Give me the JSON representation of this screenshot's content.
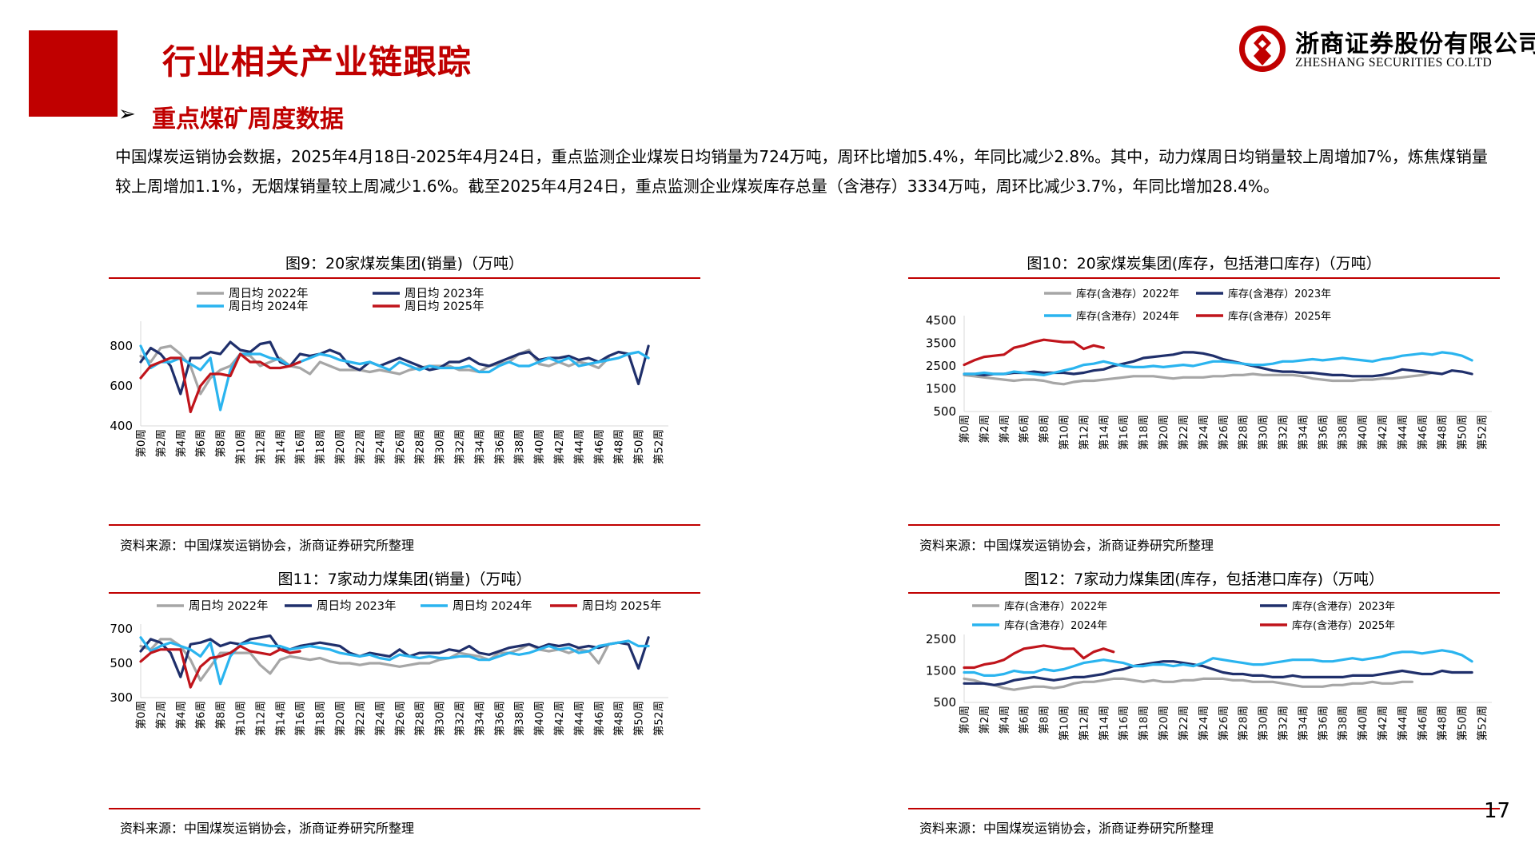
{
  "header": {
    "title": "行业相关产业链跟踪",
    "logo_cn": "浙商证券股份有限公司",
    "logo_en": "ZHESHANG SECURITIES CO.LTD",
    "accent_color": "#c00000"
  },
  "section": {
    "bullet": "➢",
    "title": "重点煤矿周度数据"
  },
  "paragraph": "中国煤炭运销协会数据，2025年4月18日-2025年4月24日，重点监测企业煤炭日均销量为724万吨，周环比增加5.4%，年同比减少2.8%。其中，动力煤周日均销量较上周增加7%，炼焦煤销量较上周增加1.1%，无烟煤销量较上周减少1.6%。截至2025年4月24日，重点监测企业煤炭库存总量（含港存）3334万吨，周环比减少3.7%，年同比增加28.4%。",
  "page_number": "17",
  "figures": [
    {
      "title": "图9：20家煤炭集团(销量)（万吨）",
      "source": "资料来源：中国煤炭运销协会，浙商证券研究所整理"
    },
    {
      "title": "图10：20家煤炭集团(库存，包括港口库存)（万吨）",
      "source": "资料来源：中国煤炭运销协会，浙商证券研究所整理"
    },
    {
      "title": "图11：7家动力煤集团(销量)（万吨）",
      "source": "资料来源：中国煤炭运销协会，浙商证券研究所整理"
    },
    {
      "title": "图12：7家动力煤集团(库存，包括港口库存)（万吨）",
      "source": "资料来源：中国煤炭运销协会，浙商证券研究所整理"
    }
  ],
  "series_colors": {
    "2022": "#a6a6a6",
    "2023": "#1f2f6b",
    "2024": "#2ab4ef",
    "2025": "#c0141b"
  },
  "chart_data": [
    {
      "type": "line",
      "title": "图9：20家煤炭集团(销量)（万吨）",
      "x_labels": [
        "第0周",
        "第2周",
        "第4周",
        "第6周",
        "第8周",
        "第10周",
        "第12周",
        "第14周",
        "第16周",
        "第18周",
        "第20周",
        "第22周",
        "第24周",
        "第26周",
        "第28周",
        "第30周",
        "第32周",
        "第34周",
        "第36周",
        "第38周",
        "第40周",
        "第42周",
        "第44周",
        "第46周",
        "第48周",
        "第50周",
        "第52周"
      ],
      "x_max": 53,
      "ylim": [
        400,
        900
      ],
      "yticks": [
        400,
        600,
        800
      ],
      "legend": [
        "周日均  2022年",
        "周日均  2023年",
        "周日均  2024年",
        "周日均  2025年"
      ],
      "series": [
        {
          "name": "周日均  2022年",
          "color_key": "2022",
          "values": [
            750,
            720,
            790,
            800,
            760,
            700,
            560,
            640,
            680,
            700,
            760,
            750,
            700,
            720,
            740,
            700,
            690,
            660,
            720,
            700,
            680,
            680,
            680,
            670,
            680,
            670,
            660,
            680,
            690,
            700,
            700,
            700,
            680,
            680,
            670,
            700,
            710,
            720,
            760,
            780,
            710,
            700,
            720,
            700,
            720,
            710,
            690,
            740
          ]
        },
        {
          "name": "周日均  2023年",
          "color_key": "2023",
          "values": [
            720,
            790,
            760,
            700,
            560,
            740,
            740,
            770,
            760,
            820,
            780,
            770,
            810,
            820,
            720,
            700,
            760,
            750,
            760,
            780,
            760,
            700,
            680,
            720,
            700,
            720,
            740,
            720,
            700,
            680,
            690,
            720,
            720,
            740,
            710,
            700,
            720,
            740,
            760,
            770,
            730,
            740,
            740,
            750,
            730,
            740,
            720,
            750,
            770,
            760,
            610,
            800
          ]
        },
        {
          "name": "周日均  2024年",
          "color_key": "2024",
          "values": [
            800,
            690,
            720,
            720,
            740,
            710,
            680,
            740,
            480,
            680,
            760,
            760,
            760,
            740,
            730,
            700,
            720,
            740,
            760,
            750,
            730,
            720,
            710,
            720,
            700,
            680,
            720,
            700,
            680,
            700,
            690,
            690,
            690,
            700,
            670,
            670,
            700,
            720,
            700,
            700,
            720,
            740,
            720,
            740,
            700,
            710,
            720,
            730,
            740,
            760,
            770,
            740
          ]
        },
        {
          "name": "周日均  2025年",
          "color_key": "2025",
          "values": [
            640,
            700,
            720,
            740,
            740,
            470,
            600,
            660,
            660,
            650,
            760,
            720,
            720,
            690,
            690,
            700,
            720
          ]
        }
      ]
    },
    {
      "type": "line",
      "title": "图10：20家煤炭集团(库存，包括港口库存)（万吨）",
      "x_labels": [
        "第0周",
        "第2周",
        "第4周",
        "第6周",
        "第8周",
        "第10周",
        "第12周",
        "第14周",
        "第16周",
        "第18周",
        "第20周",
        "第22周",
        "第24周",
        "第26周",
        "第28周",
        "第30周",
        "第32周",
        "第34周",
        "第36周",
        "第38周",
        "第40周",
        "第42周",
        "第44周",
        "第46周",
        "第48周",
        "第50周",
        "第52周"
      ],
      "x_max": 53,
      "ylim": [
        500,
        4500
      ],
      "yticks": [
        500,
        1500,
        2500,
        3500,
        4500
      ],
      "legend": [
        "库存(含港存）2022年",
        "库存(含港存）2023年",
        "库存(含港存）2024年",
        "库存(含港存）2025年"
      ],
      "series": [
        {
          "name": "库存(含港存）2022年",
          "color_key": "2022",
          "values": [
            2100,
            2050,
            2000,
            1950,
            1900,
            1850,
            1900,
            1900,
            1850,
            1750,
            1700,
            1800,
            1850,
            1850,
            1900,
            1950,
            2000,
            2050,
            2050,
            2050,
            2000,
            1950,
            2000,
            2000,
            2000,
            2050,
            2050,
            2100,
            2100,
            2150,
            2100,
            2100,
            2100,
            2100,
            2050,
            1950,
            1900,
            1850,
            1850,
            1850,
            1900,
            1900,
            1950,
            1950,
            2000,
            2050,
            2100,
            2200
          ]
        },
        {
          "name": "库存(含港存）2023年",
          "color_key": "2023",
          "values": [
            2150,
            2150,
            2100,
            2150,
            2150,
            2200,
            2200,
            2250,
            2200,
            2200,
            2200,
            2150,
            2200,
            2300,
            2350,
            2500,
            2600,
            2700,
            2850,
            2900,
            2950,
            3000,
            3100,
            3100,
            3050,
            2950,
            2800,
            2700,
            2600,
            2500,
            2400,
            2300,
            2250,
            2250,
            2200,
            2200,
            2150,
            2100,
            2100,
            2050,
            2050,
            2050,
            2100,
            2200,
            2350,
            2300,
            2250,
            2200,
            2150,
            2300,
            2250,
            2150
          ]
        },
        {
          "name": "库存(含港存）2024年",
          "color_key": "2024",
          "values": [
            2150,
            2150,
            2200,
            2150,
            2150,
            2250,
            2200,
            2150,
            2100,
            2200,
            2300,
            2400,
            2550,
            2600,
            2700,
            2600,
            2500,
            2450,
            2450,
            2500,
            2450,
            2500,
            2550,
            2500,
            2600,
            2700,
            2700,
            2650,
            2600,
            2550,
            2550,
            2600,
            2700,
            2700,
            2750,
            2800,
            2750,
            2800,
            2850,
            2800,
            2750,
            2700,
            2800,
            2850,
            2950,
            3000,
            3050,
            3000,
            3100,
            3050,
            2950,
            2750
          ]
        },
        {
          "name": "库存(含港存）2025年",
          "color_key": "2025",
          "values": [
            2550,
            2750,
            2900,
            2950,
            3000,
            3300,
            3400,
            3550,
            3650,
            3600,
            3550,
            3550,
            3250,
            3400,
            3300
          ]
        }
      ]
    },
    {
      "type": "line",
      "title": "图11：7家动力煤集团(销量)（万吨）",
      "x_labels": [
        "第0周",
        "第2周",
        "第4周",
        "第6周",
        "第8周",
        "第10周",
        "第12周",
        "第14周",
        "第16周",
        "第18周",
        "第20周",
        "第22周",
        "第24周",
        "第26周",
        "第28周",
        "第30周",
        "第32周",
        "第34周",
        "第36周",
        "第38周",
        "第40周",
        "第42周",
        "第44周",
        "第46周",
        "第48周",
        "第50周",
        "第52周"
      ],
      "x_max": 53,
      "ylim": [
        300,
        700
      ],
      "yticks": [
        300,
        500,
        700
      ],
      "legend": [
        "周日均  2022年",
        "周日均  2023年",
        "周日均  2024年",
        "周日均  2025年"
      ],
      "series": [
        {
          "name": "周日均  2022年",
          "color_key": "2022",
          "values": [
            600,
            580,
            640,
            640,
            600,
            520,
            400,
            480,
            560,
            560,
            560,
            560,
            490,
            440,
            520,
            540,
            530,
            520,
            530,
            510,
            500,
            500,
            490,
            500,
            500,
            490,
            480,
            490,
            500,
            500,
            520,
            530,
            560,
            550,
            540,
            520,
            560,
            560,
            580,
            610,
            580,
            570,
            580,
            560,
            580,
            570,
            500,
            610
          ]
        },
        {
          "name": "周日均  2023年",
          "color_key": "2023",
          "values": [
            570,
            640,
            620,
            560,
            420,
            610,
            620,
            640,
            600,
            620,
            610,
            640,
            650,
            660,
            580,
            580,
            600,
            610,
            620,
            610,
            600,
            560,
            540,
            560,
            550,
            540,
            580,
            540,
            560,
            560,
            560,
            580,
            570,
            600,
            560,
            550,
            570,
            590,
            600,
            610,
            590,
            610,
            600,
            610,
            590,
            600,
            590,
            610,
            620,
            610,
            470,
            650
          ]
        },
        {
          "name": "周日均  2024年",
          "color_key": "2024",
          "values": [
            650,
            570,
            600,
            620,
            600,
            580,
            540,
            620,
            380,
            540,
            610,
            620,
            610,
            600,
            600,
            580,
            590,
            600,
            590,
            580,
            560,
            550,
            540,
            550,
            530,
            520,
            550,
            540,
            530,
            540,
            530,
            530,
            540,
            540,
            520,
            520,
            540,
            560,
            550,
            560,
            580,
            600,
            580,
            590,
            560,
            570,
            600,
            610,
            620,
            630,
            600,
            600
          ]
        },
        {
          "name": "周日均  2025年",
          "color_key": "2025",
          "values": [
            510,
            560,
            580,
            580,
            580,
            360,
            480,
            530,
            540,
            560,
            600,
            570,
            560,
            550,
            580,
            560,
            570
          ]
        }
      ]
    },
    {
      "type": "line",
      "title": "图12：7家动力煤集团(库存，包括港口库存)（万吨）",
      "x_labels": [
        "第0周",
        "第2周",
        "第4周",
        "第6周",
        "第8周",
        "第10周",
        "第12周",
        "第14周",
        "第16周",
        "第18周",
        "第20周",
        "第22周",
        "第24周",
        "第26周",
        "第28周",
        "第30周",
        "第32周",
        "第34周",
        "第36周",
        "第38周",
        "第40周",
        "第42周",
        "第44周",
        "第46周",
        "第48周",
        "第50周",
        "第52周"
      ],
      "x_max": 53,
      "ylim": [
        500,
        2500
      ],
      "yticks": [
        500,
        1500,
        2500
      ],
      "legend": [
        "库存(含港存）2022年",
        "库存(含港存）2023年",
        "库存(含港存）2024年",
        "库存(含港存）2025年"
      ],
      "series": [
        {
          "name": "库存(含港存）2022年",
          "color_key": "2022",
          "values": [
            1250,
            1200,
            1100,
            1050,
            950,
            900,
            950,
            1000,
            1000,
            950,
            1000,
            1100,
            1150,
            1150,
            1200,
            1250,
            1250,
            1200,
            1150,
            1200,
            1150,
            1150,
            1200,
            1200,
            1250,
            1250,
            1250,
            1200,
            1200,
            1150,
            1150,
            1150,
            1100,
            1050,
            1000,
            1000,
            1000,
            1050,
            1050,
            1100,
            1100,
            1150,
            1100,
            1100,
            1150,
            1150
          ]
        },
        {
          "name": "库存(含港存）2023年",
          "color_key": "2023",
          "values": [
            1100,
            1100,
            1100,
            1050,
            1100,
            1200,
            1250,
            1300,
            1250,
            1200,
            1250,
            1300,
            1300,
            1350,
            1400,
            1500,
            1550,
            1650,
            1700,
            1750,
            1800,
            1800,
            1750,
            1700,
            1650,
            1550,
            1450,
            1400,
            1400,
            1350,
            1350,
            1300,
            1300,
            1350,
            1300,
            1300,
            1300,
            1300,
            1300,
            1350,
            1350,
            1350,
            1400,
            1450,
            1500,
            1450,
            1400,
            1400,
            1500,
            1450,
            1450,
            1450
          ]
        },
        {
          "name": "库存(含港存）2024年",
          "color_key": "2024",
          "values": [
            1450,
            1450,
            1350,
            1350,
            1400,
            1500,
            1450,
            1450,
            1550,
            1500,
            1550,
            1650,
            1750,
            1800,
            1850,
            1800,
            1750,
            1650,
            1650,
            1700,
            1700,
            1650,
            1700,
            1650,
            1750,
            1900,
            1850,
            1800,
            1750,
            1700,
            1700,
            1750,
            1800,
            1850,
            1850,
            1850,
            1800,
            1800,
            1850,
            1900,
            1850,
            1900,
            1950,
            2050,
            2100,
            2100,
            2050,
            2100,
            2150,
            2100,
            2000,
            1800
          ]
        },
        {
          "name": "库存(含港存）2025年",
          "color_key": "2025",
          "values": [
            1600,
            1600,
            1700,
            1750,
            1850,
            2050,
            2200,
            2250,
            2300,
            2250,
            2200,
            2200,
            1900,
            2100,
            2200,
            2100
          ]
        }
      ]
    }
  ]
}
